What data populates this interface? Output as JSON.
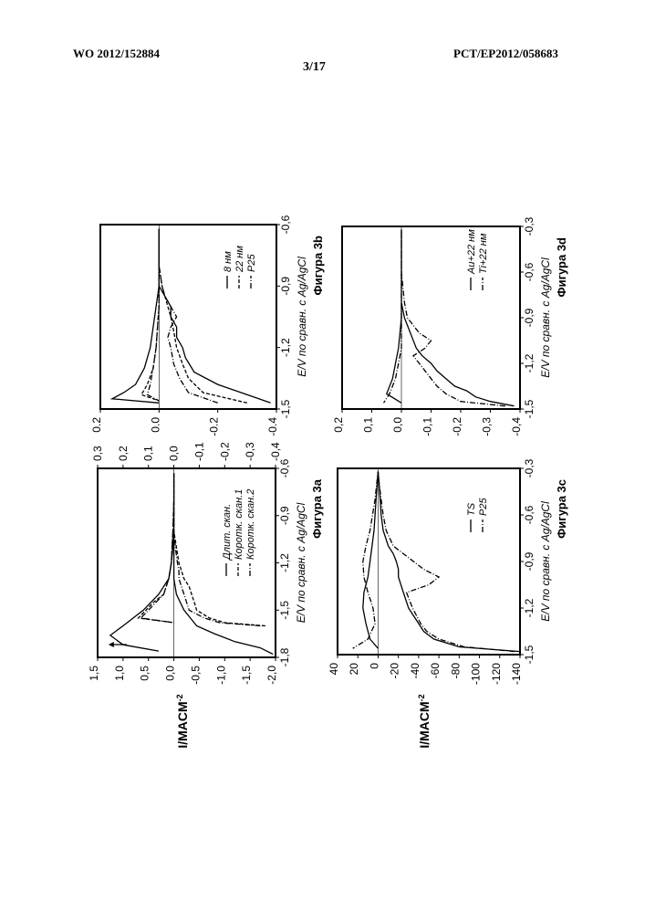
{
  "header": {
    "left": "WO 2012/152884",
    "right": "PCT/EP2012/058683",
    "center": "3/17"
  },
  "y_axis_label": "I/MACM",
  "y_axis_label_sup": "-2",
  "chart_data": [
    {
      "id": "3a",
      "type": "line",
      "caption": "Фигура 3a",
      "xlabel": "E/V по сравн. с Ag/AgCl",
      "xlim": [
        -1.8,
        -0.6
      ],
      "ylim": [
        -2.0,
        1.5
      ],
      "xticks": [
        "-1,8",
        "-1,5",
        "-1,2",
        "-0,9",
        "-0,6"
      ],
      "yticks_left": [
        "1,5",
        "1,0",
        "0,5",
        "0,0",
        "-0,5",
        "-1,0",
        "-1,5",
        "-2,0"
      ],
      "right_axis": {
        "ylim": [
          -0.4,
          0.3
        ],
        "ticks": [
          "0,3",
          "0,2",
          "0,1",
          "0,0",
          "-0,1",
          "-0,2",
          "-0,3",
          "-0,4"
        ]
      },
      "arrow": true,
      "series": [
        {
          "name": "Длит. скан.",
          "style": "solid",
          "x": [
            -1.78,
            -1.74,
            -1.7,
            -1.65,
            -1.6,
            -1.5,
            -1.4,
            -1.3,
            -1.2,
            -1.1,
            -1.0,
            -0.9,
            -0.8,
            -0.7,
            -0.63,
            -0.7,
            -0.8,
            -0.9,
            -1.0,
            -1.1,
            -1.2,
            -1.3,
            -1.4,
            -1.5,
            -1.6,
            -1.66,
            -1.72,
            -1.76
          ],
          "y": [
            -1.95,
            -1.7,
            -1.2,
            -0.8,
            -0.45,
            -0.2,
            -0.05,
            0.0,
            0.0,
            0.0,
            0.0,
            0.0,
            0.0,
            0.0,
            0.0,
            0.0,
            0.0,
            0.0,
            0.0,
            0.02,
            0.05,
            0.1,
            0.3,
            0.6,
            1.0,
            1.25,
            1.0,
            0.3
          ]
        },
        {
          "name": "Коротк. скан.1",
          "style": "dashed",
          "x": [
            -1.6,
            -1.58,
            -1.55,
            -1.5,
            -1.45,
            -1.4,
            -1.35,
            -1.3,
            -1.25,
            -1.2,
            -1.1,
            -1.0,
            -0.9,
            -0.8,
            -0.7,
            -0.63,
            -0.8,
            -1.0,
            -1.2,
            -1.3,
            -1.4,
            -1.45,
            -1.5,
            -1.55,
            -1.58
          ],
          "y": [
            -1.8,
            -1.0,
            -0.7,
            -0.45,
            -0.4,
            -0.35,
            -0.3,
            -0.2,
            -0.15,
            -0.1,
            -0.05,
            0.0,
            0.0,
            0.0,
            0.0,
            0.0,
            0.0,
            0.02,
            0.05,
            0.1,
            0.2,
            0.4,
            0.55,
            0.7,
            0.0
          ]
        },
        {
          "name": "Коротк. скан.2",
          "style": "dashdot",
          "x": [
            -1.6,
            -1.58,
            -1.55,
            -1.5,
            -1.45,
            -1.4,
            -1.35,
            -1.3,
            -1.25,
            -1.2,
            -1.1,
            -1.0,
            -0.9,
            -0.8,
            -0.7,
            -0.63,
            -0.8,
            -1.0,
            -1.2,
            -1.3,
            -1.4,
            -1.45,
            -1.5,
            -1.55,
            -1.58
          ],
          "y": [
            -1.7,
            -0.9,
            -0.6,
            -0.3,
            -0.25,
            -0.2,
            -0.15,
            -0.1,
            -0.1,
            -0.07,
            -0.03,
            0.0,
            0.0,
            0.0,
            0.0,
            0.0,
            0.0,
            0.02,
            0.05,
            0.1,
            0.2,
            0.35,
            0.5,
            0.65,
            0.0
          ]
        }
      ]
    },
    {
      "id": "3b",
      "type": "line",
      "caption": "Фигура 3b",
      "xlabel": "E/V по сравн. с Ag/AgCl",
      "xlim": [
        -1.5,
        -0.6
      ],
      "ylim": [
        -0.4,
        0.2
      ],
      "xticks": [
        "-1,5",
        "-1,2",
        "-0,9",
        "-0,6"
      ],
      "yticks": [
        "0.2",
        "0.0",
        "-0.2",
        "-0.4"
      ],
      "series": [
        {
          "name": "8 нм",
          "style": "solid",
          "x": [
            -1.47,
            -1.43,
            -1.38,
            -1.32,
            -1.25,
            -1.2,
            -1.15,
            -1.1,
            -1.05,
            -1.0,
            -0.95,
            -0.9,
            -0.8,
            -0.7,
            -0.62,
            -0.7,
            -0.9,
            -1.1,
            -1.2,
            -1.3,
            -1.38,
            -1.42,
            -1.45,
            -1.47
          ],
          "y": [
            -0.38,
            -0.3,
            -0.2,
            -0.12,
            -0.09,
            -0.08,
            -0.06,
            -0.06,
            -0.04,
            -0.04,
            -0.02,
            0.0,
            0.0,
            0.0,
            0.0,
            0.0,
            0.0,
            0.02,
            0.03,
            0.05,
            0.08,
            0.12,
            0.16,
            0.0
          ]
        },
        {
          "name": "22 нм",
          "style": "dashed",
          "x": [
            -1.47,
            -1.42,
            -1.35,
            -1.28,
            -1.2,
            -1.12,
            -1.05,
            -1.0,
            -0.95,
            -0.9,
            -0.8,
            -0.7,
            -0.62,
            -0.8,
            -1.0,
            -1.2,
            -1.3,
            -1.38,
            -1.43,
            -1.46
          ],
          "y": [
            -0.3,
            -0.15,
            -0.1,
            -0.08,
            -0.06,
            -0.05,
            -0.04,
            -0.03,
            -0.02,
            -0.01,
            0.0,
            0.0,
            0.0,
            0.0,
            0.0,
            0.01,
            0.02,
            0.04,
            0.06,
            0.0
          ]
        },
        {
          "name": "P25",
          "style": "dashdot",
          "x": [
            -1.47,
            -1.42,
            -1.35,
            -1.28,
            -1.2,
            -1.15,
            -1.1,
            -1.05,
            -1.0,
            -0.95,
            -0.9,
            -0.8,
            -0.7,
            -0.62,
            -0.8,
            -1.0,
            -1.2,
            -1.3,
            -1.38,
            -1.43,
            -1.46
          ],
          "y": [
            -0.2,
            -0.1,
            -0.07,
            -0.05,
            -0.04,
            -0.03,
            -0.04,
            -0.06,
            -0.04,
            -0.02,
            -0.01,
            0.0,
            0.0,
            0.0,
            0.0,
            0.0,
            0.01,
            0.02,
            0.03,
            0.04,
            0.0
          ]
        }
      ]
    },
    {
      "id": "3c",
      "type": "line",
      "caption": "Фигура 3c",
      "xlabel": "E/V по сравн. с Ag/AgCl",
      "xlim": [
        -1.5,
        -0.3
      ],
      "ylim": [
        -140,
        40
      ],
      "xticks": [
        "-1,5",
        "-1,2",
        "-0,9",
        "-0,6",
        "-0,3"
      ],
      "yticks": [
        "40",
        "20",
        "0",
        "-20",
        "-40",
        "-60",
        "-80",
        "-100",
        "-120",
        "-140"
      ],
      "series": [
        {
          "name": "TS",
          "style": "solid",
          "x": [
            -1.48,
            -1.45,
            -1.4,
            -1.35,
            -1.3,
            -1.2,
            -1.1,
            -1.0,
            -0.95,
            -0.9,
            -0.85,
            -0.8,
            -0.7,
            -0.6,
            -0.5,
            -0.4,
            -0.32,
            -0.5,
            -0.7,
            -0.9,
            -1.0,
            -1.1,
            -1.2,
            -1.3,
            -1.4,
            -1.46
          ],
          "y": [
            -140,
            -80,
            -55,
            -45,
            -40,
            -30,
            -25,
            -20,
            -20,
            -18,
            -15,
            -10,
            -5,
            -3,
            -2,
            -1,
            0,
            2,
            4,
            8,
            10,
            14,
            15,
            12,
            8,
            0
          ]
        },
        {
          "name": "P25",
          "style": "dashdot",
          "x": [
            -1.48,
            -1.45,
            -1.4,
            -1.35,
            -1.3,
            -1.2,
            -1.1,
            -1.05,
            -1.0,
            -0.95,
            -0.9,
            -0.85,
            -0.8,
            -0.7,
            -0.6,
            -0.5,
            -0.4,
            -0.32,
            -0.5,
            -0.7,
            -0.8,
            -0.9,
            -1.0,
            -1.1,
            -1.2,
            -1.3,
            -1.4,
            -1.46
          ],
          "y": [
            -135,
            -85,
            -60,
            -48,
            -42,
            -34,
            -28,
            -50,
            -60,
            -45,
            -35,
            -25,
            -15,
            -8,
            -5,
            -3,
            -1,
            0,
            3,
            8,
            12,
            15,
            14,
            10,
            5,
            3,
            10,
            25
          ]
        }
      ]
    },
    {
      "id": "3d",
      "type": "line",
      "caption": "Фигура 3d",
      "xlabel": "E/V по сравн. с Ag/AgCl",
      "xlim": [
        -1.5,
        -0.3
      ],
      "ylim": [
        -0.4,
        0.2
      ],
      "xticks": [
        "-1,5",
        "-1,2",
        "-0,9",
        "-0,6",
        "-0,3"
      ],
      "yticks": [
        "0,2",
        "0,1",
        "0,0",
        "-0,1",
        "-0,2",
        "-0,3",
        "-0,4"
      ],
      "series": [
        {
          "name": "Au+22 нм",
          "style": "solid",
          "x": [
            -1.48,
            -1.45,
            -1.42,
            -1.38,
            -1.35,
            -1.3,
            -1.25,
            -1.2,
            -1.15,
            -1.1,
            -1.0,
            -0.9,
            -0.8,
            -0.6,
            -0.32,
            -0.6,
            -0.9,
            -1.1,
            -1.2,
            -1.3,
            -1.4,
            -1.46
          ],
          "y": [
            -0.38,
            -0.3,
            -0.25,
            -0.22,
            -0.18,
            -0.15,
            -0.12,
            -0.1,
            -0.07,
            -0.05,
            -0.03,
            -0.01,
            0.0,
            0.0,
            0.0,
            0.0,
            0.0,
            0.01,
            0.02,
            0.03,
            0.05,
            0.0
          ]
        },
        {
          "name": "Ti+22 нм",
          "style": "dashdot",
          "x": [
            -1.48,
            -1.45,
            -1.4,
            -1.35,
            -1.3,
            -1.25,
            -1.2,
            -1.15,
            -1.1,
            -1.05,
            -1.0,
            -0.9,
            -0.8,
            -0.6,
            -0.32,
            -0.6,
            -0.9,
            -1.1,
            -1.2,
            -1.3,
            -1.4,
            -1.46
          ],
          "y": [
            -0.35,
            -0.2,
            -0.15,
            -0.12,
            -0.1,
            -0.08,
            -0.06,
            -0.04,
            -0.08,
            -0.1,
            -0.06,
            -0.02,
            -0.01,
            0.0,
            0.0,
            0.0,
            0.0,
            0.0,
            0.01,
            0.02,
            0.04,
            0.06
          ]
        }
      ]
    }
  ]
}
